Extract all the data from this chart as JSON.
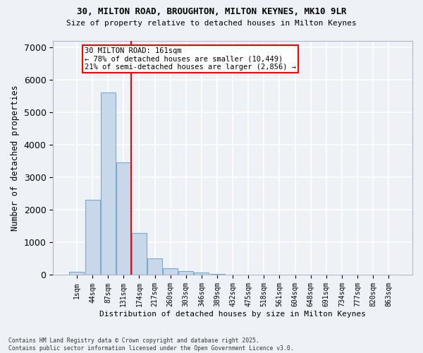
{
  "title_line1": "30, MILTON ROAD, BROUGHTON, MILTON KEYNES, MK10 9LR",
  "title_line2": "Size of property relative to detached houses in Milton Keynes",
  "xlabel": "Distribution of detached houses by size in Milton Keynes",
  "ylabel": "Number of detached properties",
  "bar_labels": [
    "1sqm",
    "44sqm",
    "87sqm",
    "131sqm",
    "174sqm",
    "217sqm",
    "260sqm",
    "303sqm",
    "346sqm",
    "389sqm",
    "432sqm",
    "475sqm",
    "518sqm",
    "561sqm",
    "604sqm",
    "648sqm",
    "691sqm",
    "734sqm",
    "777sqm",
    "820sqm",
    "863sqm"
  ],
  "bar_values": [
    100,
    2300,
    5600,
    3450,
    1300,
    500,
    200,
    120,
    80,
    30,
    0,
    0,
    0,
    0,
    0,
    0,
    0,
    0,
    0,
    0,
    0
  ],
  "bar_color": "#c8d8ea",
  "bar_edgecolor": "#7aaac8",
  "vline_x_idx": 3.5,
  "vline_color": "red",
  "annotation_text": "30 MILTON ROAD: 161sqm\n← 78% of detached houses are smaller (10,449)\n21% of semi-detached houses are larger (2,856) →",
  "ylim": [
    0,
    7200
  ],
  "yticks": [
    0,
    1000,
    2000,
    3000,
    4000,
    5000,
    6000,
    7000
  ],
  "background_color": "#eef2f7",
  "grid_color": "#ffffff",
  "footer_line1": "Contains HM Land Registry data © Crown copyright and database right 2025.",
  "footer_line2": "Contains public sector information licensed under the Open Government Licence v3.0."
}
